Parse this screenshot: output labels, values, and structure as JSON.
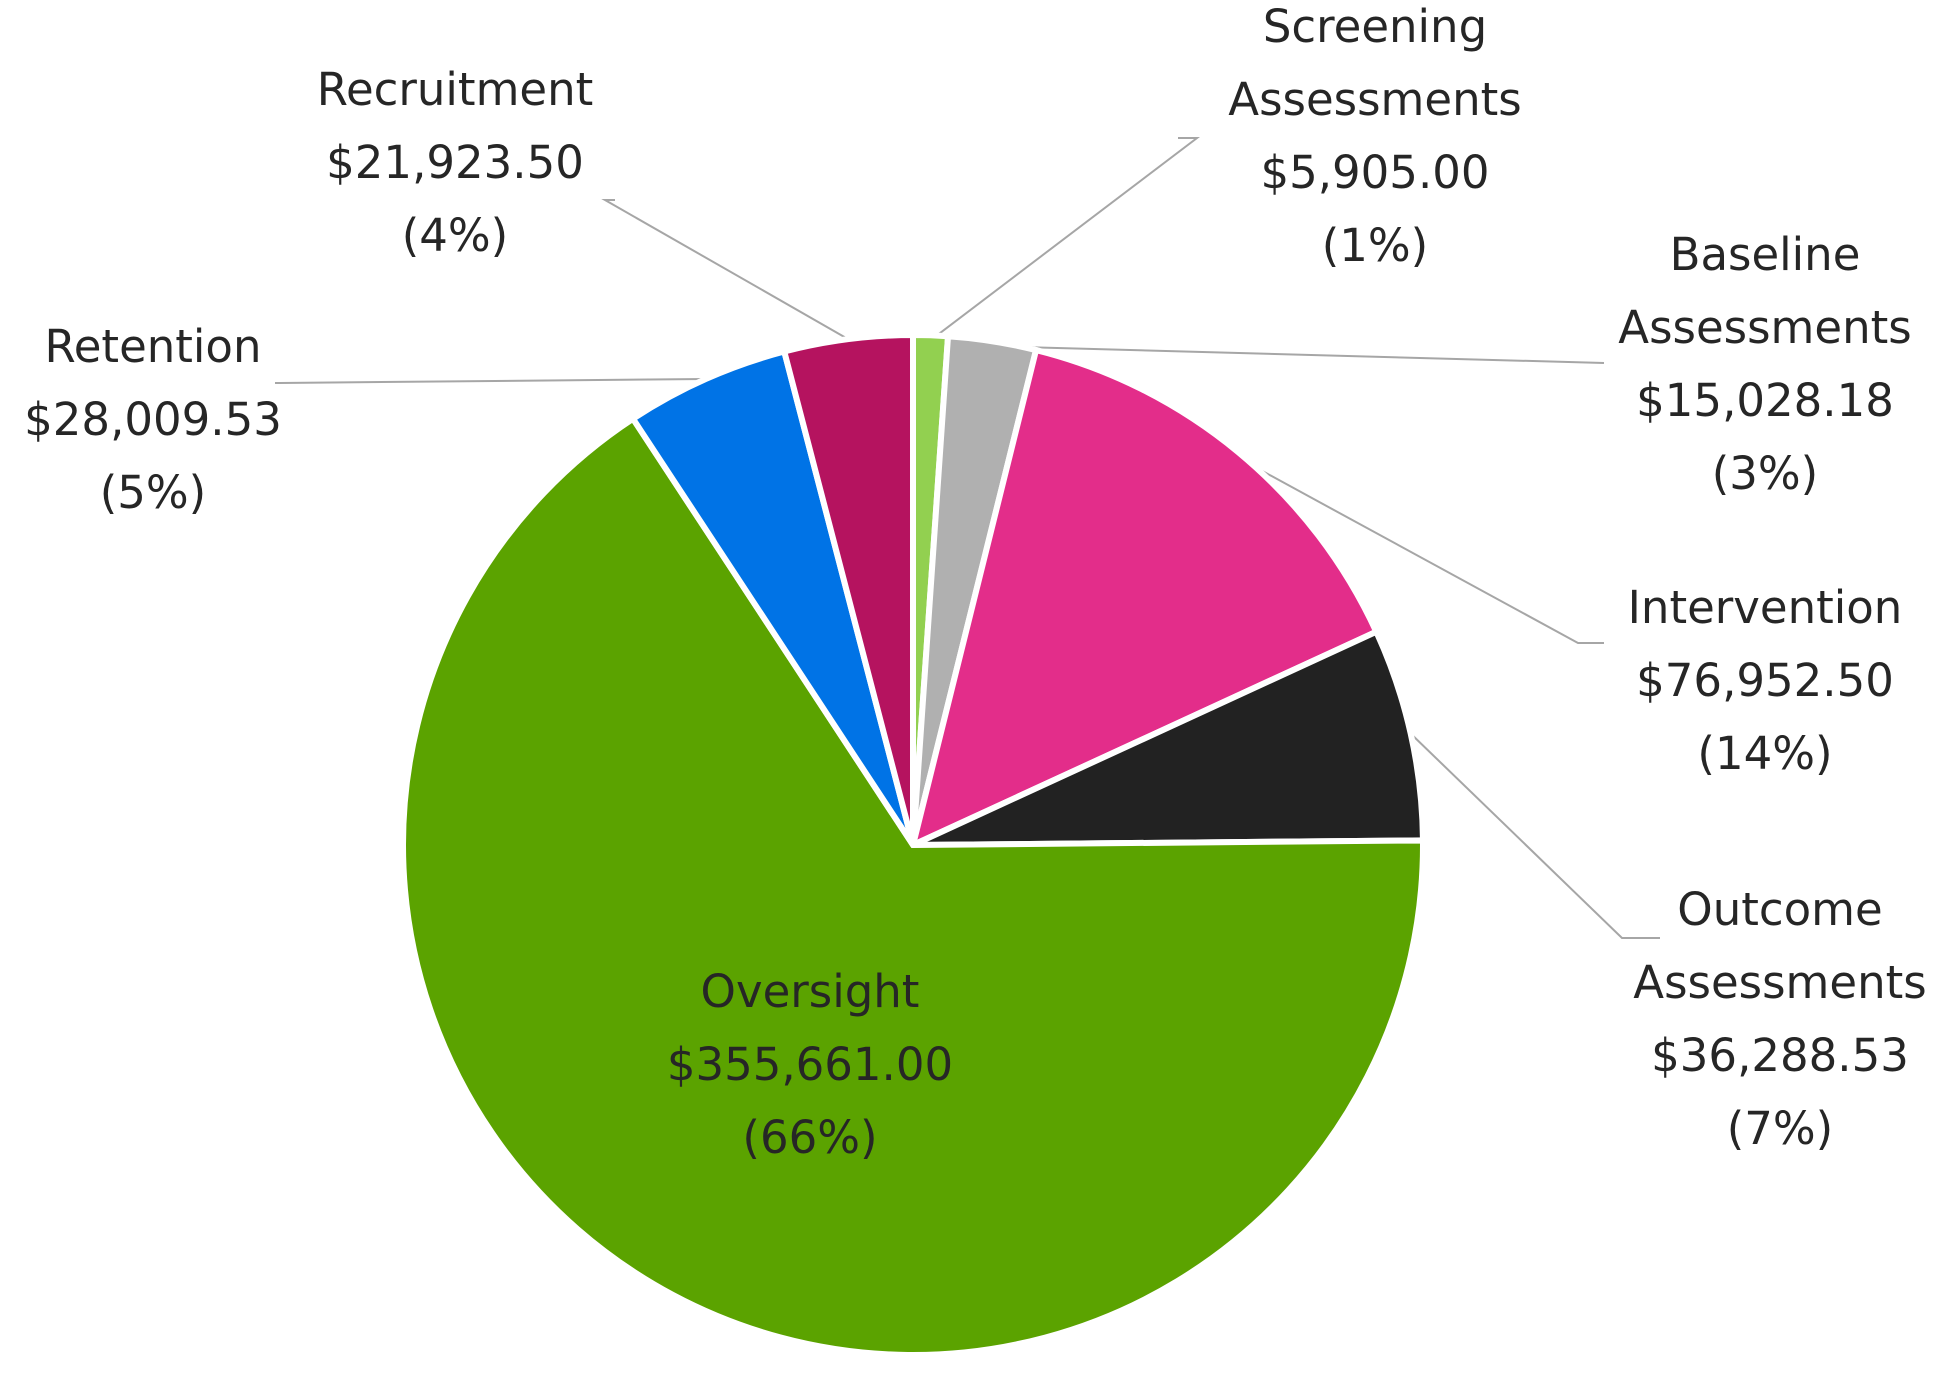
{
  "chart_data": {
    "type": "pie",
    "title": "",
    "slices": [
      {
        "name": "Screening Assessments",
        "value": 5905.0,
        "value_label": "$5,905.00",
        "percent_label": "(1%)",
        "color": "#92d050"
      },
      {
        "name": "Baseline Assessments",
        "value": 15028.18,
        "value_label": "$15,028.18",
        "percent_label": "(3%)",
        "color": "#b0b0b0"
      },
      {
        "name": "Intervention",
        "value": 76952.5,
        "value_label": "$76,952.50",
        "percent_label": "(14%)",
        "color": "#e32d8a"
      },
      {
        "name": "Outcome Assessments",
        "value": 36288.53,
        "value_label": "$36,288.53",
        "percent_label": "(7%)",
        "color": "#222222"
      },
      {
        "name": "Oversight",
        "value": 355661.0,
        "value_label": "$355,661.00",
        "percent_label": "(66%)",
        "color": "#5ba300"
      },
      {
        "name": "Retention",
        "value": 28009.53,
        "value_label": "$28,009.53",
        "percent_label": "(5%)",
        "color": "#0073e6"
      },
      {
        "name": "Recruitment",
        "value": 21923.5,
        "value_label": "$21,923.50",
        "percent_label": "(4%)",
        "color": "#b5135f"
      }
    ],
    "label_lines": {
      "Screening Assessments": [
        "Screening",
        "Assessments"
      ],
      "Baseline Assessments": [
        "Baseline",
        "Assessments"
      ],
      "Intervention": [
        "Intervention"
      ],
      "Outcome Assessments": [
        "Outcome",
        "Assessments"
      ],
      "Oversight": [
        "Oversight"
      ],
      "Retention": [
        "Retention"
      ],
      "Recruitment": [
        "Recruitment"
      ]
    }
  }
}
